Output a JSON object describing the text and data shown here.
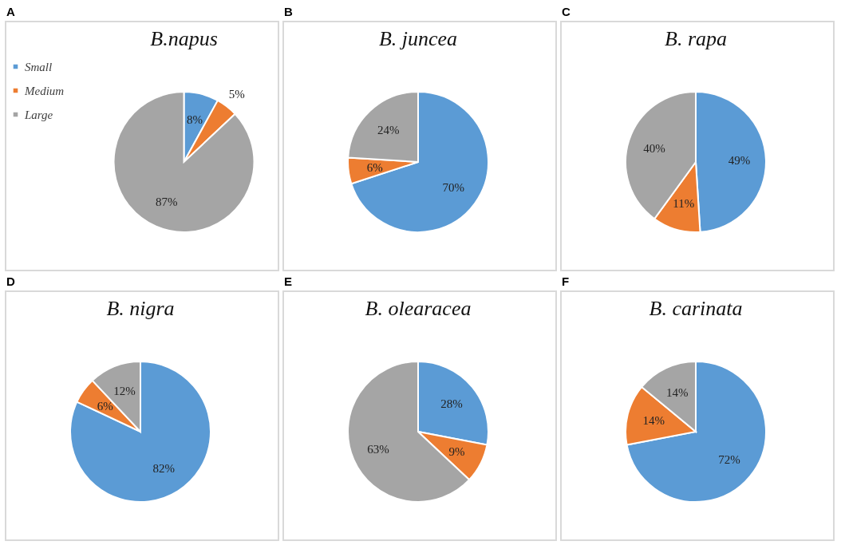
{
  "chart_data": [
    {
      "type": "pie",
      "title": "B.napus",
      "annotations": [
        "A"
      ],
      "categories": [
        "Small",
        "Medium",
        "Large"
      ],
      "values": [
        8,
        5,
        87
      ],
      "value_labels": [
        "8%",
        "5%",
        "87%"
      ],
      "colors": [
        "#5b9bd5",
        "#ed7d31",
        "#a5a5a5"
      ],
      "legend": "left"
    },
    {
      "type": "pie",
      "title": "B. juncea",
      "annotations": [
        "B"
      ],
      "categories": [
        null,
        null,
        null
      ],
      "values": [
        70,
        6,
        24
      ],
      "value_labels": [
        "70%",
        "6%",
        "24%"
      ],
      "colors": [
        "#5b9bd5",
        "#ed7d31",
        "#a5a5a5"
      ]
    },
    {
      "type": "pie",
      "title": "B. rapa",
      "annotations": [
        "C"
      ],
      "categories": [
        null,
        null,
        null
      ],
      "values": [
        49,
        11,
        40
      ],
      "value_labels": [
        "49%",
        "11%",
        "40%"
      ],
      "colors": [
        "#5b9bd5",
        "#ed7d31",
        "#a5a5a5"
      ]
    },
    {
      "type": "pie",
      "title": "B. nigra",
      "annotations": [
        "D"
      ],
      "categories": [
        null,
        null,
        null
      ],
      "values": [
        82,
        6,
        12
      ],
      "value_labels": [
        "82%",
        "6%",
        "12%"
      ],
      "colors": [
        "#5b9bd5",
        "#ed7d31",
        "#a5a5a5"
      ]
    },
    {
      "type": "pie",
      "title": "B. olearacea",
      "annotations": [
        "E"
      ],
      "categories": [
        null,
        null,
        null
      ],
      "values": [
        28,
        9,
        63
      ],
      "value_labels": [
        "28%",
        "9%",
        "63%"
      ],
      "colors": [
        "#5b9bd5",
        "#ed7d31",
        "#a5a5a5"
      ]
    },
    {
      "type": "pie",
      "title": "B. carinata",
      "annotations": [
        "F"
      ],
      "categories": [
        null,
        null,
        null
      ],
      "values": [
        72,
        14,
        14
      ],
      "value_labels": [
        "72%",
        "14%",
        "14%"
      ],
      "colors": [
        "#5b9bd5",
        "#ed7d31",
        "#a5a5a5"
      ]
    }
  ]
}
